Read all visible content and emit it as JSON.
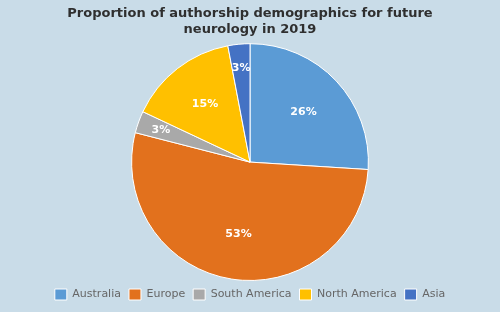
{
  "chart_data": {
    "type": "pie",
    "title": "Proportion of authorship demographics for future\nneurology in 2019",
    "categories": [
      "Australia",
      "Europe",
      "South America",
      "North America",
      "Asia"
    ],
    "values": [
      26,
      53,
      3,
      15,
      3
    ],
    "value_labels": [
      "26%",
      "53%",
      "3%",
      "15%",
      "3%"
    ],
    "colors": [
      "#5B9BD5",
      "#E2711D",
      "#A9A9A9",
      "#FFC000",
      "#4472C4"
    ],
    "data_labels": true,
    "legend": "bottom"
  }
}
